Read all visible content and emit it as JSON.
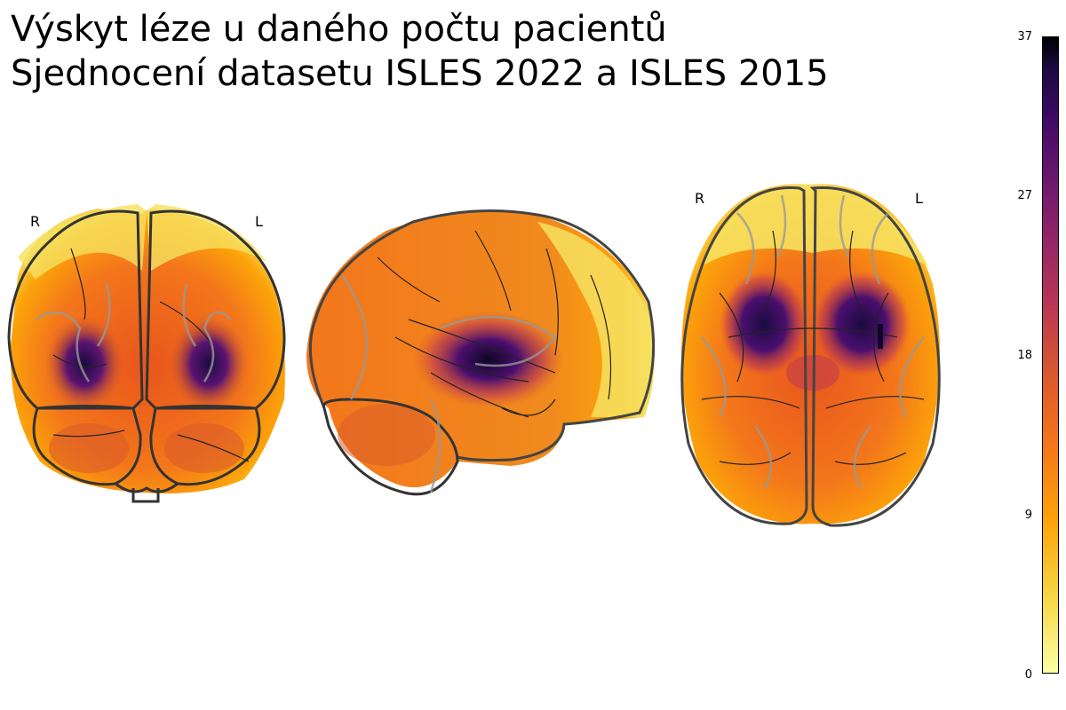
{
  "title_line1": "Výskyt léze u daného počtu pacientů",
  "title_line2": "Sjednocení datasetu ISLES 2022 a ISLES 2015",
  "views": {
    "coronal": {
      "label_right": "R",
      "label_left": "L"
    },
    "sagittal": {},
    "axial": {
      "label_right": "R",
      "label_left": "L"
    }
  },
  "colorbar": {
    "colormap": "inferno",
    "ticks": [
      "37",
      "27",
      "18",
      "9",
      "0"
    ],
    "min": 0,
    "max": 37
  },
  "colors": {
    "low": "#fcffa4",
    "mid": "#f3761b",
    "high": "#3c0965",
    "outline": "#333333"
  }
}
